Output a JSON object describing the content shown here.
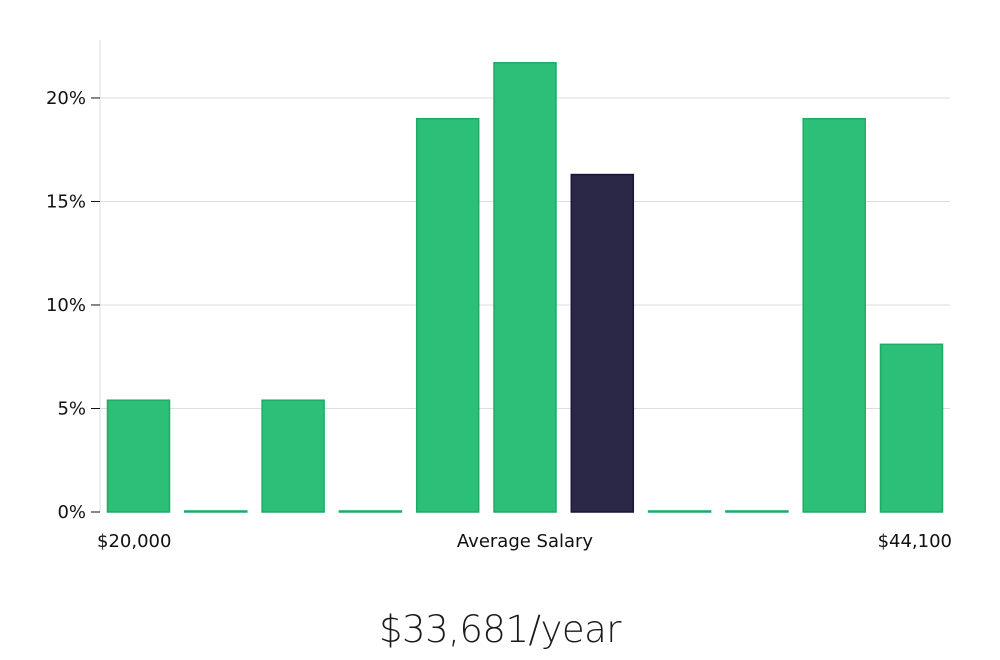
{
  "chart_data": {
    "type": "bar",
    "title": "",
    "ylabel": "",
    "xlabel": "Average Salary",
    "x_left_label": "$20,000",
    "x_right_label": "$44,100",
    "ylim": [
      0,
      22.8
    ],
    "yticks": [
      0,
      5,
      10,
      15,
      20
    ],
    "ytick_labels": [
      "0%",
      "5%",
      "10%",
      "15%",
      "20%"
    ],
    "values": [
      5.4,
      0.05,
      5.4,
      0.05,
      19.0,
      21.7,
      16.3,
      0.05,
      0.05,
      19.0,
      8.1
    ],
    "highlight_index": 6,
    "grid": true
  },
  "colors": {
    "bar": "#2bbf77",
    "bar_edge": "#1eab66",
    "highlight": "#2a2747",
    "highlight_edge": "#17153a"
  },
  "summary": {
    "salary": "$33,681/year"
  }
}
